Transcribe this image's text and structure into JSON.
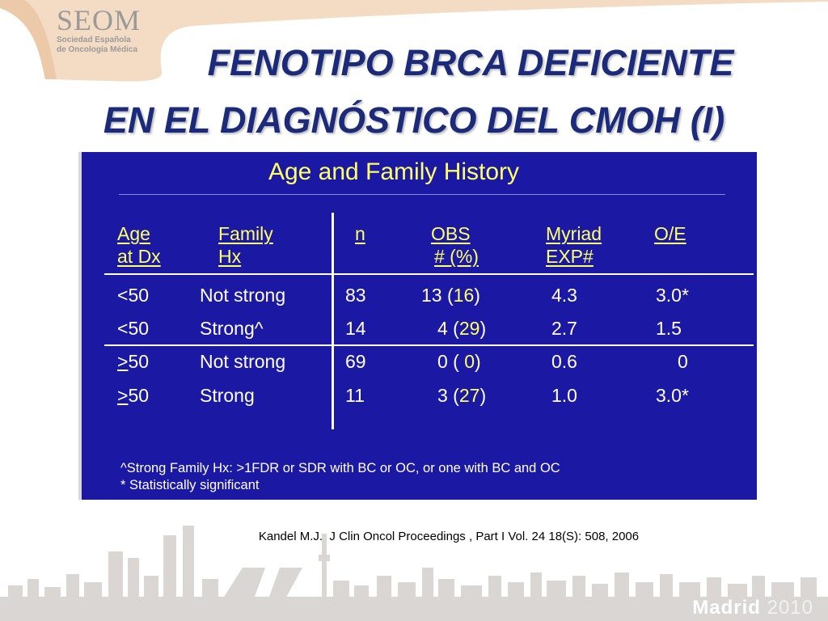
{
  "logo": {
    "name": "SEOM",
    "subtitle_line1": "Sociedad Española",
    "subtitle_line2": "de Oncología Médica"
  },
  "title": {
    "line1": "FENOTIPO BRCA DEFICIENTE",
    "line2": "EN EL DIAGNÓSTICO DEL CMOH (I)"
  },
  "slide": {
    "heading": "Age and Family History",
    "columns": [
      {
        "line1": "Age",
        "line2": "at Dx"
      },
      {
        "line1": "Family",
        "line2": "Hx"
      },
      {
        "line1": "n",
        "line2": ""
      },
      {
        "line1": "OBS",
        "line2": "# (%)"
      },
      {
        "line1": "Myriad",
        "line2": "EXP#"
      },
      {
        "line1": "O/E",
        "line2": ""
      }
    ],
    "rows": [
      {
        "age_prefix": "<",
        "age": "50",
        "family": "Not strong",
        "n": "83",
        "obs_n": "13",
        "obs_pct": "16",
        "exp": "4.3",
        "oe": "3.0*"
      },
      {
        "age_prefix": "<",
        "age": "50",
        "family": "Strong^",
        "n": "14",
        "obs_n": "4",
        "obs_pct": "29",
        "exp": "2.7",
        "oe": "1.5"
      },
      {
        "age_prefix": ">",
        "age": "50",
        "family": "Not strong",
        "n": "69",
        "obs_n": "0",
        "obs_pct": " 0",
        "exp": "0.6",
        "oe": "0"
      },
      {
        "age_prefix": ">",
        "age": "50",
        "family": "Strong",
        "n": "11",
        "obs_n": "3",
        "obs_pct": "27",
        "exp": "1.0",
        "oe": "3.0*"
      }
    ],
    "footnote1": "^Strong Family Hx: >1FDR or SDR with BC or OC, or one with BC and OC",
    "footnote2": "* Statistically significant"
  },
  "citation": "Kandel M.J., J Clin Oncol Proceedings , Part I Vol. 24 18(S): 508, 2006",
  "footer": {
    "city": "Madrid",
    "year": "2010"
  },
  "colors": {
    "title": "#1b2a7a",
    "slide_bg": "#1b19a3",
    "highlight": "#ffff66",
    "banner": "#f4dcc4",
    "skyline": "#d9d6d3"
  }
}
